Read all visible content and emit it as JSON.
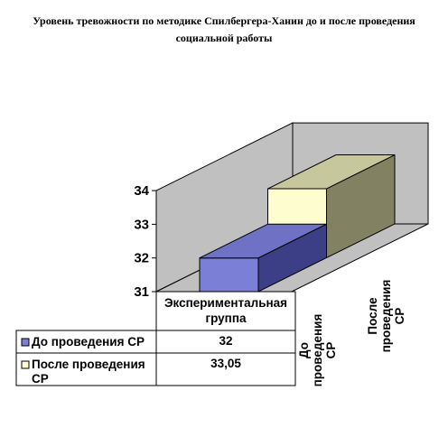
{
  "chart_data": {
    "type": "bar",
    "title": "Уровень тревожности по методике Спилбергера-Ханин до и после проведения социальной работы",
    "categories": [
      "Экспериментальная группа"
    ],
    "series": [
      {
        "name": "До проведения СР",
        "values": [
          32
        ],
        "label": "32",
        "color": "#7b7fd6"
      },
      {
        "name": "После проведения СР",
        "values": [
          33.05
        ],
        "label": "33,05",
        "color": "#fdfdd0"
      }
    ],
    "depth_labels": [
      "До проведения СР",
      "После проведения СР"
    ],
    "ylim": [
      31,
      34
    ],
    "yticks": [
      "31",
      "32",
      "33",
      "34"
    ],
    "grid": false,
    "data_table": true,
    "wall_color": "#c0c0c0"
  }
}
